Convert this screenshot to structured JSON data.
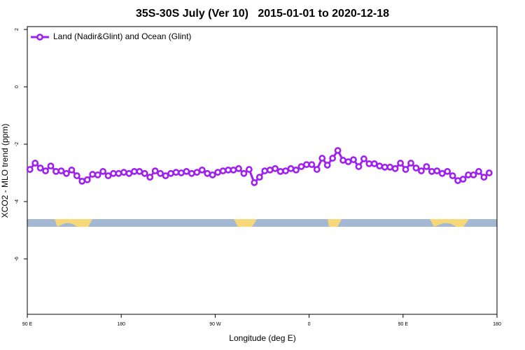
{
  "chart_data": {
    "type": "line",
    "title": "35S-30S July (Ver 10)   2015-01-01 to 2020-12-18",
    "xlabel": "Longitude (deg E)",
    "ylabel": "XCO2 - MLO trend (ppm)",
    "xlim": [
      90,
      540
    ],
    "ylim": [
      -7.93,
      2.1
    ],
    "xticks": [
      {
        "value": 90,
        "label": "90 E"
      },
      {
        "value": 180,
        "label": "180"
      },
      {
        "value": 270,
        "label": "90 W"
      },
      {
        "value": 360,
        "label": "0"
      },
      {
        "value": 450,
        "label": "90 E"
      },
      {
        "value": 540,
        "label": "180"
      }
    ],
    "yticks": [
      2,
      0,
      -2,
      -4,
      -6
    ],
    "legend": "top-left",
    "x": [
      92.5,
      97.5,
      102.5,
      107.5,
      112.5,
      117.5,
      122.5,
      127.5,
      132.5,
      137.5,
      142.5,
      147.5,
      152.5,
      157.5,
      162.5,
      167.5,
      172.5,
      177.5,
      182.5,
      187.5,
      192.5,
      197.5,
      202.5,
      207.5,
      212.5,
      217.5,
      222.5,
      227.5,
      232.5,
      237.5,
      242.5,
      247.5,
      252.5,
      257.5,
      262.5,
      267.5,
      272.5,
      277.5,
      282.5,
      287.5,
      292.5,
      297.5,
      302.5,
      307.5,
      312.5,
      317.5,
      322.5,
      327.5,
      332.5,
      337.5,
      342.5,
      347.5,
      352.5,
      357.5,
      362.5,
      367.5,
      372.5,
      377.5,
      382.5,
      387.5,
      392.5,
      397.5,
      402.5,
      407.5,
      412.5,
      417.5,
      422.5,
      427.5,
      432.5,
      437.5,
      442.5,
      447.5,
      452.5,
      457.5,
      462.5,
      467.5,
      472.5,
      477.5,
      482.5,
      487.5,
      492.5,
      497.5,
      502.5,
      507.5,
      512.5,
      517.5,
      522.5,
      527.5,
      532.5
    ],
    "series": [
      {
        "name": "Land (Nadir&Glint) and Ocean (Glint)",
        "color": "#a020f0",
        "values": [
          -2.88,
          -2.66,
          -2.83,
          -2.93,
          -2.76,
          -2.95,
          -2.93,
          -3.02,
          -2.9,
          -3.1,
          -3.29,
          -3.24,
          -3.05,
          -3.07,
          -2.95,
          -3.1,
          -3.02,
          -3.02,
          -2.98,
          -3.02,
          -2.95,
          -2.95,
          -3.02,
          -3.15,
          -2.93,
          -3.02,
          -3.1,
          -3.02,
          -2.98,
          -3.0,
          -2.95,
          -3.02,
          -2.98,
          -2.9,
          -3.02,
          -3.07,
          -2.98,
          -2.93,
          -2.9,
          -2.9,
          -2.85,
          -3.02,
          -2.88,
          -3.34,
          -3.15,
          -2.93,
          -2.9,
          -2.85,
          -2.95,
          -2.93,
          -2.85,
          -2.9,
          -2.78,
          -2.71,
          -2.71,
          -2.88,
          -2.49,
          -2.73,
          -2.49,
          -2.22,
          -2.56,
          -2.61,
          -2.54,
          -2.78,
          -2.51,
          -2.68,
          -2.68,
          -2.76,
          -2.8,
          -2.8,
          -2.85,
          -2.66,
          -2.88,
          -2.66,
          -2.83,
          -2.93,
          -2.78,
          -2.95,
          -2.93,
          -3.02,
          -2.95,
          -3.1,
          -3.27,
          -3.22,
          -3.07,
          -3.07,
          -2.95,
          -3.15,
          -3.0
        ]
      }
    ]
  }
}
